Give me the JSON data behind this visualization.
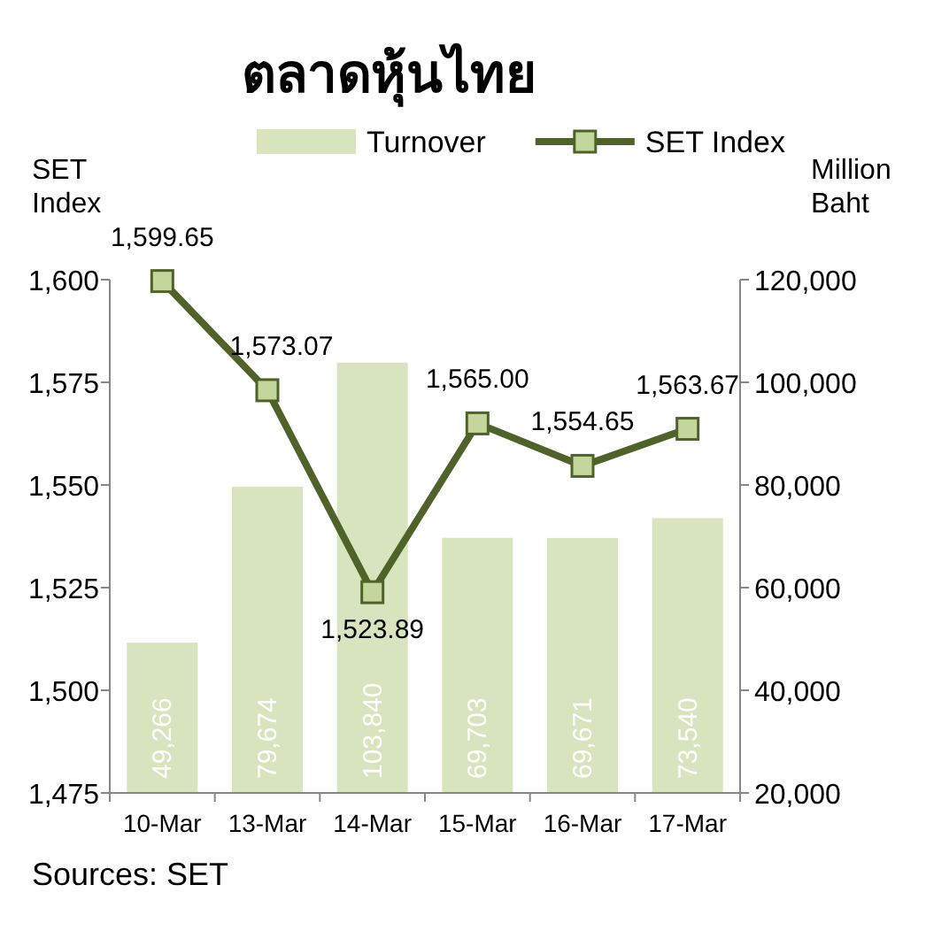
{
  "chart_data": {
    "type": "bar",
    "title": "ตลาดหุ้นไทย",
    "ylabel": "SET Index",
    "y2label": "Million Baht",
    "categories": [
      "10-Mar",
      "13-Mar",
      "14-Mar",
      "15-Mar",
      "16-Mar",
      "17-Mar"
    ],
    "series": [
      {
        "name": "Turnover",
        "axis": "y2",
        "color": "#d7e4bd",
        "values": [
          49266,
          79674,
          103840,
          69703,
          69671,
          73540
        ],
        "value_labels": [
          "49,266",
          "79,674",
          "103,840",
          "69,703",
          "69,671",
          "73,540"
        ]
      },
      {
        "name": "SET Index",
        "type": "line",
        "axis": "y",
        "color": "#4f6228",
        "marker": "square",
        "line_style": "solid",
        "values": [
          1599.65,
          1573.07,
          1523.89,
          1565.0,
          1554.65,
          1563.67
        ],
        "value_labels": [
          "1,599.65",
          "1,573.07",
          "1,523.89",
          "1,565.00",
          "1,554.65",
          "1,563.67"
        ]
      }
    ],
    "ylim": [
      1475,
      1600
    ],
    "yticks": [
      {
        "value": 1475,
        "label": "1,475"
      },
      {
        "value": 1500,
        "label": "1,500"
      },
      {
        "value": 1525,
        "label": "1,525"
      },
      {
        "value": 1550,
        "label": "1,550"
      },
      {
        "value": 1575,
        "label": "1,575"
      },
      {
        "value": 1600,
        "label": "1,600"
      }
    ],
    "y2lim": [
      20000,
      120000
    ],
    "y2ticks": [
      {
        "value": 20000,
        "label": "20,000"
      },
      {
        "value": 40000,
        "label": "40,000"
      },
      {
        "value": 60000,
        "label": "60,000"
      },
      {
        "value": 80000,
        "label": "80,000"
      },
      {
        "value": 100000,
        "label": "100,000"
      },
      {
        "value": 120000,
        "label": "120,000"
      }
    ],
    "legend": "top",
    "grid": false,
    "annotations": [
      "Sources: SET"
    ]
  }
}
